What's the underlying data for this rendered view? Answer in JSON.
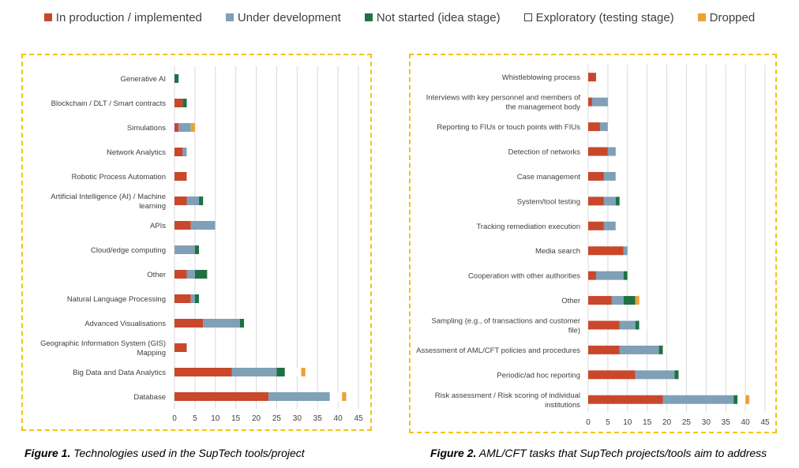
{
  "legend": [
    {
      "label": "In production / implemented",
      "color": "#c9472b"
    },
    {
      "label": "Under development",
      "color": "#7fa0b6"
    },
    {
      "label": "Not started (idea stage)",
      "color": "#1e7145"
    },
    {
      "label": "Exploratory (testing stage)",
      "color": "#ffffff"
    },
    {
      "label": "Dropped",
      "color": "#f0a035"
    }
  ],
  "captions": {
    "fig1_num": "Figure 1.",
    "fig1_text": " Technologies used in the SupTech tools/project",
    "fig2_num": "Figure 2.",
    "fig2_text": " AML/CFT tasks that SupTech projects/tools aim to address"
  },
  "chart_data": [
    {
      "type": "bar",
      "orientation": "horizontal",
      "stacked": true,
      "xlim": [
        0,
        45
      ],
      "xticks": [
        0,
        5,
        10,
        15,
        20,
        25,
        30,
        35,
        40,
        45
      ],
      "grid": true,
      "categories": [
        "Generative AI",
        "Blockchain / DLT / Smart contracts",
        "Simulations",
        "Network Analytics",
        "Robotic Process Automation",
        "Artificial Intelligence (AI) / Machine learning",
        "APIs",
        "Cloud/edge computing",
        "Other",
        "Natural Language Processing",
        "Advanced Visualisations",
        "Geographic Information System (GIS) Mapping",
        "Big Data and Data Analytics",
        "Database"
      ],
      "series": [
        {
          "name": "In production / implemented",
          "values": [
            0,
            2,
            1,
            2,
            3,
            3,
            4,
            0,
            3,
            4,
            7,
            3,
            14,
            23
          ]
        },
        {
          "name": "Under development",
          "values": [
            0,
            0,
            3,
            1,
            0,
            3,
            6,
            5,
            2,
            1,
            9,
            0,
            11,
            15
          ]
        },
        {
          "name": "Not started (idea stage)",
          "values": [
            1,
            1,
            0,
            0,
            0,
            1,
            0,
            1,
            3,
            1,
            1,
            0,
            2,
            0
          ]
        },
        {
          "name": "Exploratory (testing stage)",
          "values": [
            0,
            0,
            0,
            0,
            1,
            0,
            2,
            1,
            1,
            2,
            0,
            0,
            4,
            3
          ]
        },
        {
          "name": "Dropped",
          "values": [
            0,
            0,
            1,
            0,
            0,
            0,
            0,
            0,
            0,
            0,
            0,
            0,
            1,
            1
          ]
        }
      ]
    },
    {
      "type": "bar",
      "orientation": "horizontal",
      "stacked": true,
      "xlim": [
        0,
        45
      ],
      "xticks": [
        0,
        5,
        10,
        15,
        20,
        25,
        30,
        35,
        40,
        45
      ],
      "grid": true,
      "categories": [
        "Whistleblowing process",
        "Interviews with key personnel and members of the management body",
        "Reporting to FIUs or touch points with FIUs",
        "Detection of networks",
        "Case management",
        "System/tool testing",
        "Tracking remediation execution",
        "Media search",
        "Cooperation with other authorities",
        "Other",
        "Sampling (e.g., of transactions and customer file)",
        "Assessment of AML/CFT policies and procedures",
        "Periodic/ad hoc reporting",
        "Risk assessment / Risk scoring of individual institutions"
      ],
      "series": [
        {
          "name": "In production / implemented",
          "values": [
            2,
            1,
            3,
            5,
            4,
            4,
            4,
            9,
            2,
            6,
            8,
            8,
            12,
            19
          ]
        },
        {
          "name": "Under development",
          "values": [
            0,
            4,
            2,
            2,
            3,
            3,
            3,
            1,
            7,
            3,
            4,
            10,
            10,
            18
          ]
        },
        {
          "name": "Not started (idea stage)",
          "values": [
            0,
            0,
            0,
            0,
            0,
            1,
            0,
            0,
            1,
            3,
            1,
            1,
            1,
            1
          ]
        },
        {
          "name": "Exploratory (testing stage)",
          "values": [
            0,
            0,
            2,
            0,
            2,
            1,
            2,
            0,
            2,
            0,
            2,
            1,
            1,
            2
          ]
        },
        {
          "name": "Dropped",
          "values": [
            0,
            0,
            0,
            0,
            0,
            0,
            0,
            0,
            0,
            1,
            0,
            0,
            0,
            1
          ]
        }
      ]
    }
  ]
}
